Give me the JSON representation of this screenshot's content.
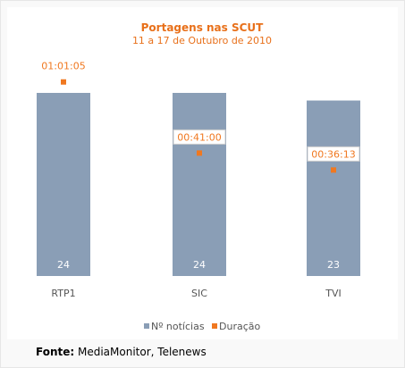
{
  "chart_data": {
    "type": "bar",
    "title": "Portagens nas SCUT",
    "subtitle": "11 a 17 de Outubro de 2010",
    "categories": [
      "RTP1",
      "SIC",
      "TVI"
    ],
    "series": [
      {
        "name": "Nº notícias",
        "type": "bar",
        "values": [
          24,
          24,
          23
        ],
        "labels": [
          "24",
          "24",
          "23"
        ],
        "color": "#8a9eb6"
      },
      {
        "name": "Duração",
        "type": "point",
        "values_seconds": [
          3665,
          2460,
          2173
        ],
        "labels": [
          "01:01:05",
          "00:41:00",
          "00:36:13"
        ],
        "color": "#f07820"
      }
    ],
    "legend_position": "bottom",
    "grid": false
  },
  "colors": {
    "title": "#e8701a",
    "bar": "#8a9eb6",
    "marker": "#f07820",
    "axis_text": "#555555"
  },
  "source": {
    "label": "Fonte:",
    "text": " MediaMonitor, Telenews"
  }
}
